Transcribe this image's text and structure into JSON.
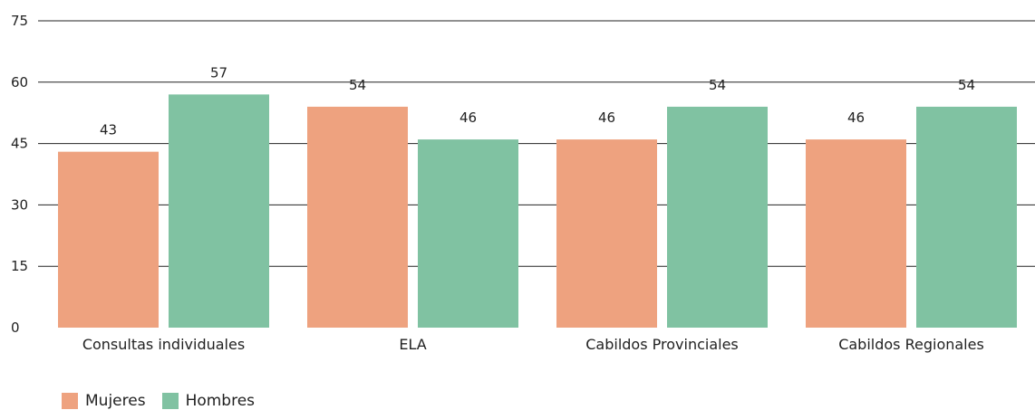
{
  "chart_data": {
    "type": "bar",
    "categories": [
      "Consultas individuales",
      "ELA",
      "Cabildos Provinciales",
      "Cabildos Regionales"
    ],
    "series": [
      {
        "name": "Mujeres",
        "values": [
          43,
          54,
          46,
          46
        ],
        "color": "#eea27f"
      },
      {
        "name": "Hombres",
        "values": [
          57,
          46,
          54,
          54
        ],
        "color": "#80c2a2"
      }
    ],
    "yticks": [
      0,
      15,
      30,
      45,
      60,
      75
    ],
    "ylim": [
      0,
      75
    ],
    "grid": true,
    "legend_position": "bottom-left"
  }
}
